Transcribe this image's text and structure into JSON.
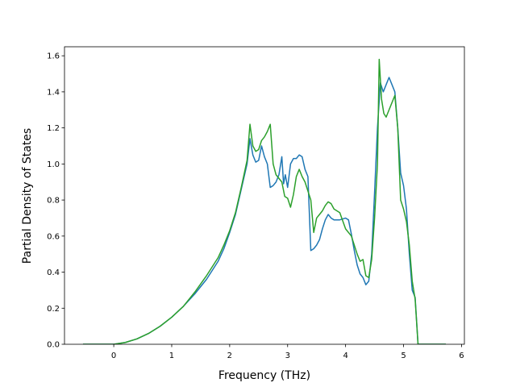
{
  "chart_data": {
    "type": "line",
    "xlabel": "Frequency (THz)",
    "ylabel": "Partial Density of States",
    "xlim": [
      -0.85,
      6.05
    ],
    "ylim": [
      0.0,
      1.65
    ],
    "xticks": [
      0,
      1,
      2,
      3,
      4,
      5,
      6
    ],
    "yticks": [
      0.0,
      0.2,
      0.4,
      0.6,
      0.8,
      1.0,
      1.2,
      1.4,
      1.6
    ],
    "grid": false,
    "series": [
      {
        "color": "#1f77b4",
        "x": [
          -0.52,
          -0.3,
          0.0,
          0.2,
          0.4,
          0.6,
          0.8,
          1.0,
          1.2,
          1.4,
          1.6,
          1.8,
          1.9,
          2.0,
          2.1,
          2.2,
          2.3,
          2.35,
          2.4,
          2.45,
          2.5,
          2.55,
          2.6,
          2.65,
          2.7,
          2.75,
          2.8,
          2.85,
          2.9,
          2.93,
          2.96,
          3.0,
          3.05,
          3.1,
          3.15,
          3.2,
          3.25,
          3.3,
          3.35,
          3.4,
          3.45,
          3.5,
          3.55,
          3.6,
          3.65,
          3.7,
          3.75,
          3.8,
          3.9,
          4.0,
          4.05,
          4.1,
          4.15,
          4.2,
          4.25,
          4.3,
          4.35,
          4.4,
          4.45,
          4.5,
          4.55,
          4.6,
          4.65,
          4.7,
          4.75,
          4.8,
          4.85,
          4.9,
          4.95,
          5.0,
          5.05,
          5.1,
          5.15,
          5.2,
          5.25,
          5.3,
          5.5,
          5.72
        ],
        "y": [
          0.0,
          0.0,
          0.0,
          0.01,
          0.03,
          0.06,
          0.1,
          0.15,
          0.21,
          0.28,
          0.36,
          0.46,
          0.53,
          0.62,
          0.72,
          0.86,
          1.0,
          1.14,
          1.05,
          1.01,
          1.02,
          1.1,
          1.04,
          1.0,
          0.87,
          0.88,
          0.9,
          0.94,
          1.04,
          0.89,
          0.94,
          0.87,
          1.0,
          1.03,
          1.03,
          1.05,
          1.04,
          0.97,
          0.93,
          0.52,
          0.53,
          0.55,
          0.58,
          0.64,
          0.69,
          0.72,
          0.7,
          0.69,
          0.69,
          0.7,
          0.69,
          0.61,
          0.52,
          0.44,
          0.39,
          0.37,
          0.33,
          0.35,
          0.5,
          0.84,
          1.2,
          1.45,
          1.4,
          1.44,
          1.48,
          1.44,
          1.4,
          1.2,
          0.95,
          0.88,
          0.75,
          0.5,
          0.3,
          0.26,
          0.0,
          0.0,
          0.0,
          0.0
        ]
      },
      {
        "color": "#2ca02c",
        "x": [
          -0.52,
          -0.3,
          0.0,
          0.2,
          0.4,
          0.6,
          0.8,
          1.0,
          1.2,
          1.4,
          1.6,
          1.8,
          1.9,
          2.0,
          2.1,
          2.2,
          2.3,
          2.35,
          2.4,
          2.45,
          2.5,
          2.55,
          2.6,
          2.65,
          2.7,
          2.75,
          2.8,
          2.85,
          2.9,
          2.95,
          3.0,
          3.05,
          3.1,
          3.15,
          3.2,
          3.25,
          3.3,
          3.35,
          3.4,
          3.45,
          3.5,
          3.55,
          3.6,
          3.65,
          3.7,
          3.75,
          3.8,
          3.9,
          4.0,
          4.1,
          4.2,
          4.25,
          4.3,
          4.35,
          4.4,
          4.45,
          4.5,
          4.55,
          4.58,
          4.62,
          4.66,
          4.7,
          4.75,
          4.8,
          4.85,
          4.9,
          4.95,
          5.0,
          5.05,
          5.1,
          5.15,
          5.2,
          5.25,
          5.3,
          5.5,
          5.72
        ],
        "y": [
          0.0,
          0.0,
          0.0,
          0.01,
          0.03,
          0.06,
          0.1,
          0.15,
          0.21,
          0.29,
          0.38,
          0.48,
          0.55,
          0.63,
          0.73,
          0.87,
          1.02,
          1.22,
          1.1,
          1.07,
          1.08,
          1.13,
          1.15,
          1.18,
          1.22,
          1.0,
          0.94,
          0.92,
          0.9,
          0.82,
          0.81,
          0.76,
          0.83,
          0.93,
          0.97,
          0.93,
          0.9,
          0.85,
          0.8,
          0.62,
          0.7,
          0.72,
          0.74,
          0.77,
          0.79,
          0.78,
          0.75,
          0.73,
          0.64,
          0.6,
          0.5,
          0.46,
          0.47,
          0.38,
          0.37,
          0.47,
          0.7,
          1.0,
          1.58,
          1.36,
          1.28,
          1.26,
          1.3,
          1.34,
          1.38,
          1.2,
          0.8,
          0.75,
          0.68,
          0.55,
          0.35,
          0.25,
          0.0,
          0.0,
          0.0,
          0.0
        ]
      }
    ]
  }
}
